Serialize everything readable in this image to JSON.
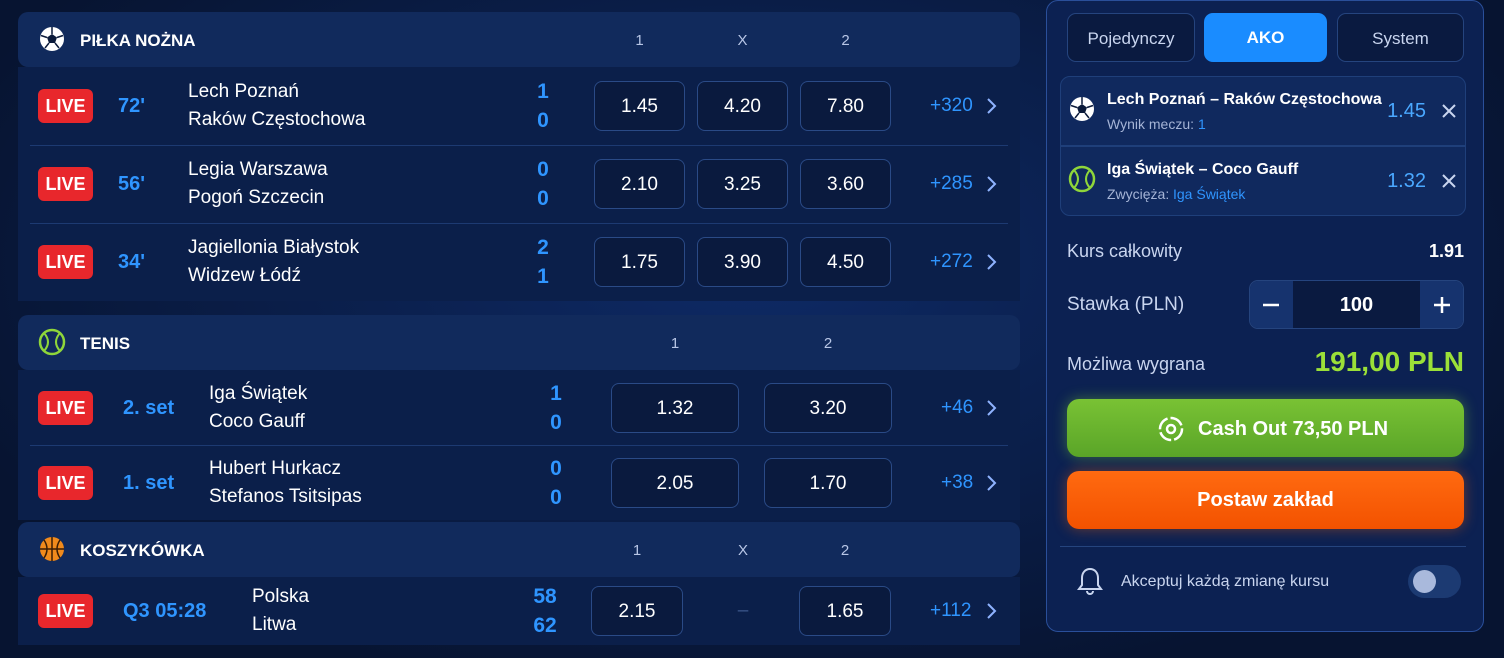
{
  "sections": [
    {
      "title": "PIŁKA NOŻNA",
      "columns": [
        "1",
        "X",
        "2"
      ],
      "events": [
        {
          "live": "LIVE",
          "time": "72'",
          "home": "Lech Poznań",
          "away": "Raków Częstochowa",
          "score_home": "1",
          "score_away": "0",
          "odds": [
            "1.45",
            "4.20",
            "7.80"
          ],
          "more": "+320"
        },
        {
          "live": "LIVE",
          "time": "56'",
          "home": "Legia Warszawa",
          "away": "Pogoń Szczecin",
          "score_home": "0",
          "score_away": "0",
          "odds": [
            "2.10",
            "3.25",
            "3.60"
          ],
          "more": "+285"
        },
        {
          "live": "LIVE",
          "time": "34'",
          "home": "Jagiellonia Białystok",
          "away": "Widzew Łódź",
          "score_home": "2",
          "score_away": "1",
          "odds": [
            "1.75",
            "3.90",
            "4.50"
          ],
          "more": "+272"
        }
      ]
    },
    {
      "title": "TENIS",
      "columns": [
        "1",
        "2"
      ],
      "events": [
        {
          "live": "LIVE",
          "time": "2. set",
          "home": "Iga Świątek",
          "away": "Coco Gauff",
          "score_home": "1",
          "score_away": "0",
          "odds": [
            "1.32",
            "3.20"
          ],
          "more": "+46"
        },
        {
          "live": "LIVE",
          "time": "1. set",
          "home": "Hubert Hurkacz",
          "away": "Stefanos Tsitsipas",
          "score_home": "0",
          "score_away": "0",
          "odds": [
            "2.05",
            "1.70"
          ],
          "more": "+38"
        }
      ]
    },
    {
      "title": "KOSZYKÓWKA",
      "columns": [
        "1",
        "X",
        "2"
      ],
      "events": [
        {
          "live": "LIVE",
          "time": "Q3 05:28",
          "home": "Polska",
          "away": "Litwa",
          "score_home": "58",
          "score_away": "62",
          "odds": [
            "2.15",
            "–",
            "1.65"
          ],
          "more": "+112"
        }
      ]
    }
  ],
  "betslip": {
    "tabs": [
      "Pojedynczy",
      "AKO",
      "System"
    ],
    "selections": [
      {
        "match": "Lech Poznań – Raków Częstochowa",
        "market": "Wynik meczu:",
        "pick": "1",
        "odds": "1.45"
      },
      {
        "match": "Iga Świątek – Coco Gauff",
        "market": "Zwycięża:",
        "pick": "Iga Świątek",
        "odds": "1.32"
      }
    ],
    "total_label": "Kurs całkowity",
    "total": "1.91",
    "stake_label": "Stawka (PLN)",
    "stake": "100",
    "win_label": "Możliwa wygrana",
    "win": "191,00 PLN",
    "cashout": "Cash Out 73,50 PLN",
    "place": "Postaw zakład",
    "accept": "Akceptuj każdą zmianę kursu"
  }
}
